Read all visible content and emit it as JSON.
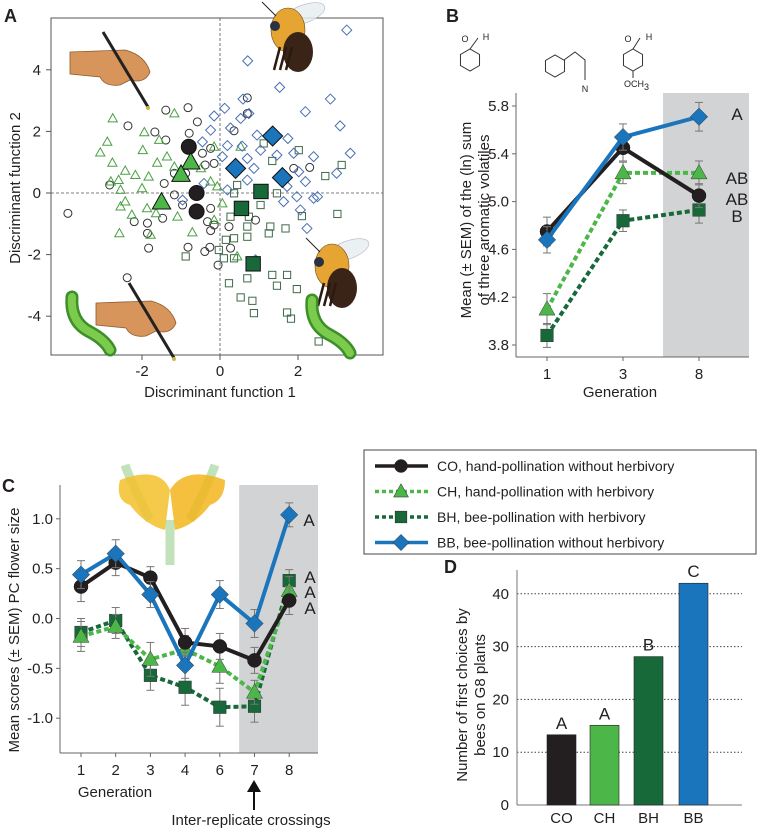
{
  "panel_labels": [
    "A",
    "B",
    "C",
    "D"
  ],
  "colors": {
    "CO": "#231f20",
    "CH": "#4cb748",
    "BH": "#17693a",
    "BB": "#1b75bc",
    "shade": "#d1d3d4"
  },
  "legend": {
    "items": [
      {
        "key": "CO",
        "label": "CO, hand-pollination without herbivory",
        "marker": "circle",
        "line": "solid"
      },
      {
        "key": "CH",
        "label": "CH, hand-pollination with herbivory",
        "marker": "triangle",
        "line": "dotted"
      },
      {
        "key": "BH",
        "label": "BH, bee-pollination with herbivory",
        "marker": "square",
        "line": "dotted"
      },
      {
        "key": "BB",
        "label": "BB, bee-pollination without herbivory",
        "marker": "diamond",
        "line": "solid"
      }
    ]
  },
  "illustrations": {
    "panel_a": [
      "hand-brush",
      "bee",
      "caterpillar"
    ],
    "panel_b_structures": {
      "aldehyde_h": "H",
      "aldehyde_o": "O",
      "nitrile_n": "N",
      "methoxy": "OCH",
      "methoxy_sub": "3"
    },
    "panel_c": "flower"
  },
  "chart_data": [
    {
      "panel": "A",
      "type": "scatter",
      "xlabel": "Discriminant function 1",
      "ylabel": "Discriminant function 2",
      "xticks": [
        "-2",
        "0",
        "2"
      ],
      "yticks": [
        "-4",
        "-2",
        "0",
        "2",
        "4"
      ],
      "xlim": [
        -4.3,
        4.0
      ],
      "ylim": [
        -5.2,
        5.6
      ],
      "reference_lines": "dashed at x=0 and y=0",
      "series": [
        {
          "name": "CO",
          "marker": "circle",
          "means": [
            [
              -0.8,
              1.5
            ],
            [
              -0.6,
              0.0
            ],
            [
              -0.6,
              -0.6
            ]
          ],
          "points": [
            [
              -3.9,
              -0.66
            ],
            [
              -2.38,
              -2.75
            ],
            [
              -2.36,
              2.18
            ],
            [
              -1.39,
              2.69
            ],
            [
              -0.82,
              2.77
            ],
            [
              0.7,
              3.09
            ],
            [
              0.7,
              2.58
            ],
            [
              -0.58,
              2.31
            ],
            [
              -1.67,
              1.98
            ],
            [
              -0.79,
              1.94
            ],
            [
              -1.39,
              1.72
            ],
            [
              0.36,
              2.02
            ],
            [
              -0.24,
              1.45
            ],
            [
              -0.45,
              1.29
            ],
            [
              -0.15,
              0.96
            ],
            [
              -1.17,
              0.64
            ],
            [
              -0.38,
              0.91
            ],
            [
              -2.83,
              0.26
            ],
            [
              -1.43,
              0.31
            ],
            [
              -1.17,
              -0.06
            ],
            [
              -0.96,
              -0.39
            ],
            [
              -0.24,
              -0.5
            ],
            [
              -2.2,
              -0.93
            ],
            [
              -1.86,
              -0.98
            ],
            [
              -1.47,
              -0.82
            ],
            [
              -0.32,
              -0.93
            ],
            [
              -0.15,
              -1.04
            ],
            [
              -1.86,
              -1.31
            ],
            [
              -0.24,
              -1.22
            ],
            [
              0.23,
              -1.09
            ],
            [
              0.91,
              -0.88
            ],
            [
              -1.83,
              -1.79
            ],
            [
              -0.82,
              -1.76
            ],
            [
              -0.39,
              -1.9
            ],
            [
              -0.26,
              -1.76
            ],
            [
              -0.05,
              -2.34
            ],
            [
              0.27,
              -1.79
            ],
            [
              1.89,
              0.8
            ],
            [
              2.3,
              0.83
            ],
            [
              -0.88,
              0.64
            ]
          ]
        },
        {
          "name": "CH",
          "marker": "triangle",
          "means": [
            [
              -0.75,
              1.0
            ],
            [
              -1.0,
              0.6
            ],
            [
              -1.5,
              -0.3
            ]
          ],
          "points": [
            [
              -2.75,
              2.42
            ],
            [
              -1.17,
              2.58
            ],
            [
              -1.94,
              1.97
            ],
            [
              -1.56,
              1.72
            ],
            [
              -2.89,
              1.66
            ],
            [
              -3.07,
              1.31
            ],
            [
              -1.98,
              1.39
            ],
            [
              -2.76,
              0.98
            ],
            [
              -1.61,
              0.98
            ],
            [
              -1.36,
              1.18
            ],
            [
              -2.43,
              0.72
            ],
            [
              -2.17,
              0.58
            ],
            [
              -2.8,
              0.37
            ],
            [
              -2.6,
              0.42
            ],
            [
              -1.83,
              0.53
            ],
            [
              -1.17,
              0.85
            ],
            [
              -0.15,
              1.5
            ],
            [
              -0.49,
              0.8
            ],
            [
              -0.24,
              0.37
            ],
            [
              -2.0,
              0.15
            ],
            [
              -2.55,
              0.1
            ],
            [
              -2.43,
              -0.28
            ],
            [
              -1.87,
              -0.5
            ],
            [
              -2.55,
              -0.44
            ],
            [
              -1.64,
              -0.66
            ],
            [
              -1.09,
              -0.77
            ],
            [
              -2.26,
              -0.71
            ],
            [
              -0.15,
              -0.88
            ],
            [
              -0.71,
              -1.28
            ],
            [
              -2.58,
              -1.31
            ],
            [
              -1.78,
              -1.36
            ],
            [
              0.44,
              -2.06
            ],
            [
              0.53,
              1.5
            ],
            [
              -0.07,
              0.21
            ],
            [
              0.06,
              -0.34
            ]
          ]
        },
        {
          "name": "BH",
          "marker": "square",
          "means": [
            [
              0.55,
              -0.5
            ],
            [
              1.05,
              0.05
            ],
            [
              0.85,
              -2.3
            ]
          ],
          "points": [
            [
              3.12,
              0.91
            ],
            [
              2.7,
              0.55
            ],
            [
              2.02,
              1.39
            ],
            [
              1.34,
              1.04
            ],
            [
              1.12,
              1.61
            ],
            [
              0.44,
              0.26
            ],
            [
              1.46,
              -0.01
            ],
            [
              3.01,
              -0.68
            ],
            [
              2.1,
              -0.75
            ],
            [
              1.04,
              -0.39
            ],
            [
              0.27,
              -0.77
            ],
            [
              0.74,
              -0.77
            ],
            [
              1.29,
              -1.09
            ],
            [
              1.25,
              -1.31
            ],
            [
              1.68,
              -1.15
            ],
            [
              0.15,
              -1.52
            ],
            [
              0.36,
              -1.47
            ],
            [
              0.7,
              -1.42
            ],
            [
              -0.03,
              -1.85
            ],
            [
              -0.88,
              -2.06
            ],
            [
              0.1,
              -2.12
            ],
            [
              0.36,
              -2.12
            ],
            [
              0.7,
              -2.77
            ],
            [
              1.34,
              -2.66
            ],
            [
              1.72,
              -2.66
            ],
            [
              1.46,
              -3.01
            ],
            [
              0.23,
              -2.93
            ],
            [
              1.97,
              -3.12
            ],
            [
              0.53,
              -3.39
            ],
            [
              0.83,
              -3.5
            ],
            [
              0.87,
              -3.9
            ],
            [
              1.72,
              -3.88
            ],
            [
              1.82,
              -4.08
            ],
            [
              2.53,
              -4.82
            ],
            [
              0.7,
              -1.09
            ],
            [
              0.36,
              -0.01
            ]
          ]
        },
        {
          "name": "BB",
          "marker": "diamond",
          "means": [
            [
              0.4,
              0.8
            ],
            [
              1.35,
              1.85
            ],
            [
              1.6,
              0.5
            ]
          ],
          "points": [
            [
              3.25,
              5.29
            ],
            [
              0.71,
              4.29
            ],
            [
              1.53,
              3.43
            ],
            [
              2.83,
              3.05
            ],
            [
              0.59,
              3.05
            ],
            [
              0.12,
              2.75
            ],
            [
              -0.15,
              2.5
            ],
            [
              0.74,
              2.58
            ],
            [
              0.53,
              2.42
            ],
            [
              2.19,
              2.64
            ],
            [
              3.08,
              2.18
            ],
            [
              0.27,
              2.11
            ],
            [
              -0.24,
              2.04
            ],
            [
              0.95,
              1.88
            ],
            [
              1.74,
              1.77
            ],
            [
              -0.45,
              1.66
            ],
            [
              0.19,
              1.54
            ],
            [
              0.57,
              1.52
            ],
            [
              1.04,
              1.39
            ],
            [
              1.89,
              1.29
            ],
            [
              3.34,
              1.29
            ],
            [
              2.4,
              1.18
            ],
            [
              0.06,
              1.18
            ],
            [
              0.7,
              1.12
            ],
            [
              1.46,
              1.23
            ],
            [
              0.87,
              0.8
            ],
            [
              2.02,
              0.69
            ],
            [
              2.99,
              0.64
            ],
            [
              2.19,
              0.37
            ],
            [
              0.7,
              0.42
            ],
            [
              -0.41,
              0.31
            ],
            [
              0.19,
              0.1
            ],
            [
              1.72,
              0.21
            ],
            [
              2.5,
              -0.12
            ],
            [
              1.97,
              -0.12
            ],
            [
              2.4,
              -0.17
            ],
            [
              1.63,
              -0.28
            ],
            [
              -0.96,
              -0.23
            ],
            [
              2.06,
              -0.55
            ],
            [
              2.23,
              -1.15
            ],
            [
              0.91,
              -2.17
            ]
          ]
        }
      ]
    },
    {
      "panel": "B",
      "type": "line",
      "xlabel": "Generation",
      "ylabel": [
        "Mean (± SEM) of the (ln) sum",
        "of three aromatic volatiles"
      ],
      "categories": [
        "1",
        "3",
        "8"
      ],
      "yticks": [
        "3.8",
        "4.2",
        "4.6",
        "5.0",
        "5.4",
        "5.8"
      ],
      "ylim": [
        3.77,
        5.9
      ],
      "shaded_categories": [
        "8"
      ],
      "series": [
        {
          "name": "CO",
          "values": [
            4.75,
            5.45,
            5.05
          ],
          "sem": [
            0.12,
            0.11,
            0.1
          ]
        },
        {
          "name": "BB",
          "values": [
            4.68,
            5.54,
            5.71
          ],
          "sem": [
            0.11,
            0.11,
            0.12
          ]
        },
        {
          "name": "CH",
          "values": [
            4.1,
            5.24,
            5.24
          ],
          "sem": [
            0.13,
            0.09,
            0.1
          ]
        },
        {
          "name": "BH",
          "values": [
            3.88,
            4.84,
            4.93
          ],
          "sem": [
            0.1,
            0.09,
            0.11
          ]
        }
      ],
      "significance_labels": [
        {
          "series": "BB",
          "text": "A"
        },
        {
          "series": "CH",
          "text": "AB"
        },
        {
          "series": "CO",
          "text": "AB"
        },
        {
          "series": "BH",
          "text": "B"
        }
      ]
    },
    {
      "panel": "C",
      "type": "line",
      "xlabel": "Generation",
      "ylabel": "Mean scores (± SEM) PC flower size",
      "categories": [
        "1",
        "2",
        "3",
        "4",
        "6",
        "7",
        "8"
      ],
      "yticks": [
        "-1.0",
        "-0.5",
        "0.0",
        "0.5",
        "1.0"
      ],
      "ylim": [
        -1.35,
        1.35
      ],
      "shaded_categories": [
        "7",
        "8"
      ],
      "annotation": "Inter-replicate crossings",
      "annotation_category": "7",
      "series": [
        {
          "name": "CO",
          "values": [
            0.32,
            0.56,
            0.41,
            -0.24,
            -0.28,
            -0.42,
            0.18
          ],
          "sem": [
            0.15,
            0.13,
            0.11,
            0.14,
            0.13,
            0.13,
            0.14
          ]
        },
        {
          "name": "BB",
          "values": [
            0.44,
            0.65,
            0.24,
            -0.47,
            0.24,
            -0.05,
            1.04
          ],
          "sem": [
            0.14,
            0.14,
            0.13,
            0.13,
            0.14,
            0.14,
            0.12
          ]
        },
        {
          "name": "CH",
          "values": [
            -0.18,
            -0.08,
            -0.41,
            -0.31,
            -0.48,
            -0.74,
            0.28
          ],
          "sem": [
            0.15,
            0.12,
            0.17,
            0.14,
            0.17,
            0.12,
            0.14
          ]
        },
        {
          "name": "BH",
          "values": [
            -0.14,
            -0.02,
            -0.57,
            -0.69,
            -0.89,
            -0.88,
            0.38
          ],
          "sem": [
            0.14,
            0.13,
            0.15,
            0.18,
            0.19,
            0.16,
            0.11
          ]
        }
      ],
      "significance_labels": [
        {
          "series": "BB",
          "text": "A"
        },
        {
          "series": "BH",
          "text": "A"
        },
        {
          "series": "CH",
          "text": "A"
        },
        {
          "series": "CO",
          "text": "A"
        }
      ]
    },
    {
      "panel": "D",
      "type": "bar",
      "ylabel": [
        "Number of first choices by",
        "bees on G8 plants"
      ],
      "categories": [
        "CO",
        "CH",
        "BH",
        "BB"
      ],
      "values": [
        13.3,
        15.1,
        28.1,
        42.0
      ],
      "yticks": [
        "0",
        "10",
        "20",
        "30",
        "40"
      ],
      "ylim": [
        0,
        45
      ],
      "grid": "dotted horizontal at 10, 20, 30, 40",
      "bar_labels": [
        "A",
        "A",
        "B",
        "C"
      ]
    }
  ]
}
